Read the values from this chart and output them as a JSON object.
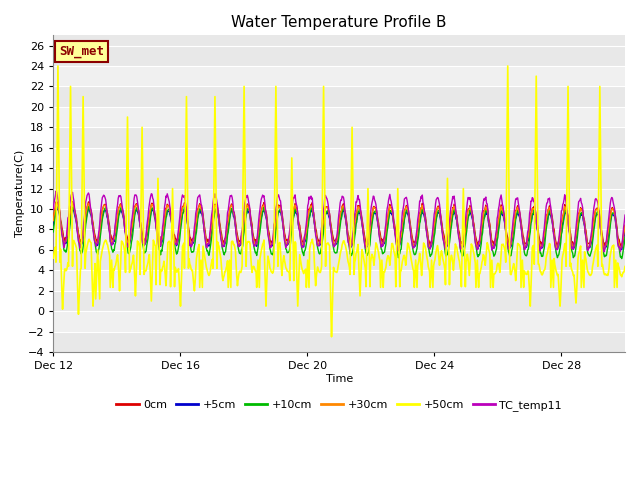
{
  "title": "Water Temperature Profile B",
  "xlabel": "Time",
  "ylabel": "Temperature(C)",
  "ylim": [
    -4,
    27
  ],
  "yticks": [
    -4,
    -2,
    0,
    2,
    4,
    6,
    8,
    10,
    12,
    14,
    16,
    18,
    20,
    22,
    24,
    26
  ],
  "plot_bg_color": "#e8e8e8",
  "band_color_light": "#dcdcdc",
  "band_color_white": "#f0f0f0",
  "series": {
    "0cm": {
      "color": "#dd0000",
      "lw": 1.0,
      "zorder": 4
    },
    "+5cm": {
      "color": "#0000cc",
      "lw": 1.0,
      "zorder": 4
    },
    "+10cm": {
      "color": "#00bb00",
      "lw": 1.0,
      "zorder": 4
    },
    "+30cm": {
      "color": "#ff8800",
      "lw": 1.0,
      "zorder": 4
    },
    "+50cm": {
      "color": "#ffff00",
      "lw": 1.2,
      "zorder": 5
    },
    "TC_temp11": {
      "color": "#bb00bb",
      "lw": 1.0,
      "zorder": 4
    }
  },
  "annotation": {
    "text": "SW_met",
    "fontsize": 9,
    "color": "#8b0000",
    "bg": "#ffff99",
    "border_color": "#8b0000"
  },
  "xtick_dates": [
    "Dec 12",
    "Dec 16",
    "Dec 20",
    "Dec 24",
    "Dec 28"
  ],
  "xtick_positions": [
    0,
    4,
    8,
    12,
    16
  ],
  "num_days": 18
}
